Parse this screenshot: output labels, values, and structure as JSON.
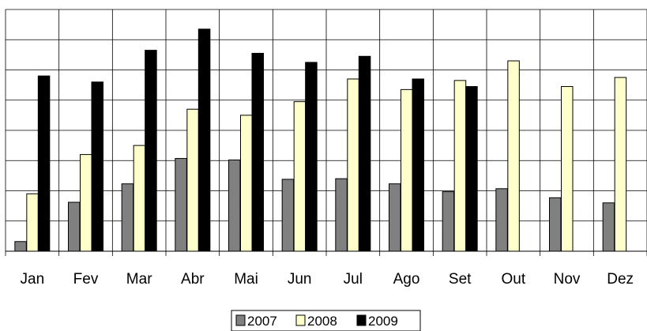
{
  "chart_data": {
    "type": "bar",
    "title": "",
    "xlabel": "",
    "ylabel": "",
    "grid": true,
    "legend_position": "bottom",
    "categories": [
      "Jan",
      "Fev",
      "Mar",
      "Abr",
      "Mai",
      "Jun",
      "Jul",
      "Ago",
      "Set",
      "Out",
      "Nov",
      "Dez"
    ],
    "ylim": [
      0,
      8
    ],
    "series": [
      {
        "name": "2007",
        "color": "#808080",
        "values": [
          0.32,
          1.62,
          2.23,
          3.07,
          3.02,
          2.38,
          2.4,
          2.23,
          1.97,
          2.07,
          1.77,
          1.6
        ]
      },
      {
        "name": "2008",
        "color": "#ffffcc",
        "values": [
          1.9,
          3.2,
          3.5,
          4.7,
          4.5,
          4.95,
          5.7,
          5.35,
          5.65,
          6.3,
          5.45,
          5.75
        ]
      },
      {
        "name": "2009",
        "color": "#000000",
        "values": [
          5.8,
          5.6,
          6.65,
          7.35,
          6.55,
          6.25,
          6.45,
          5.7,
          5.45,
          null,
          null,
          null
        ]
      }
    ]
  }
}
